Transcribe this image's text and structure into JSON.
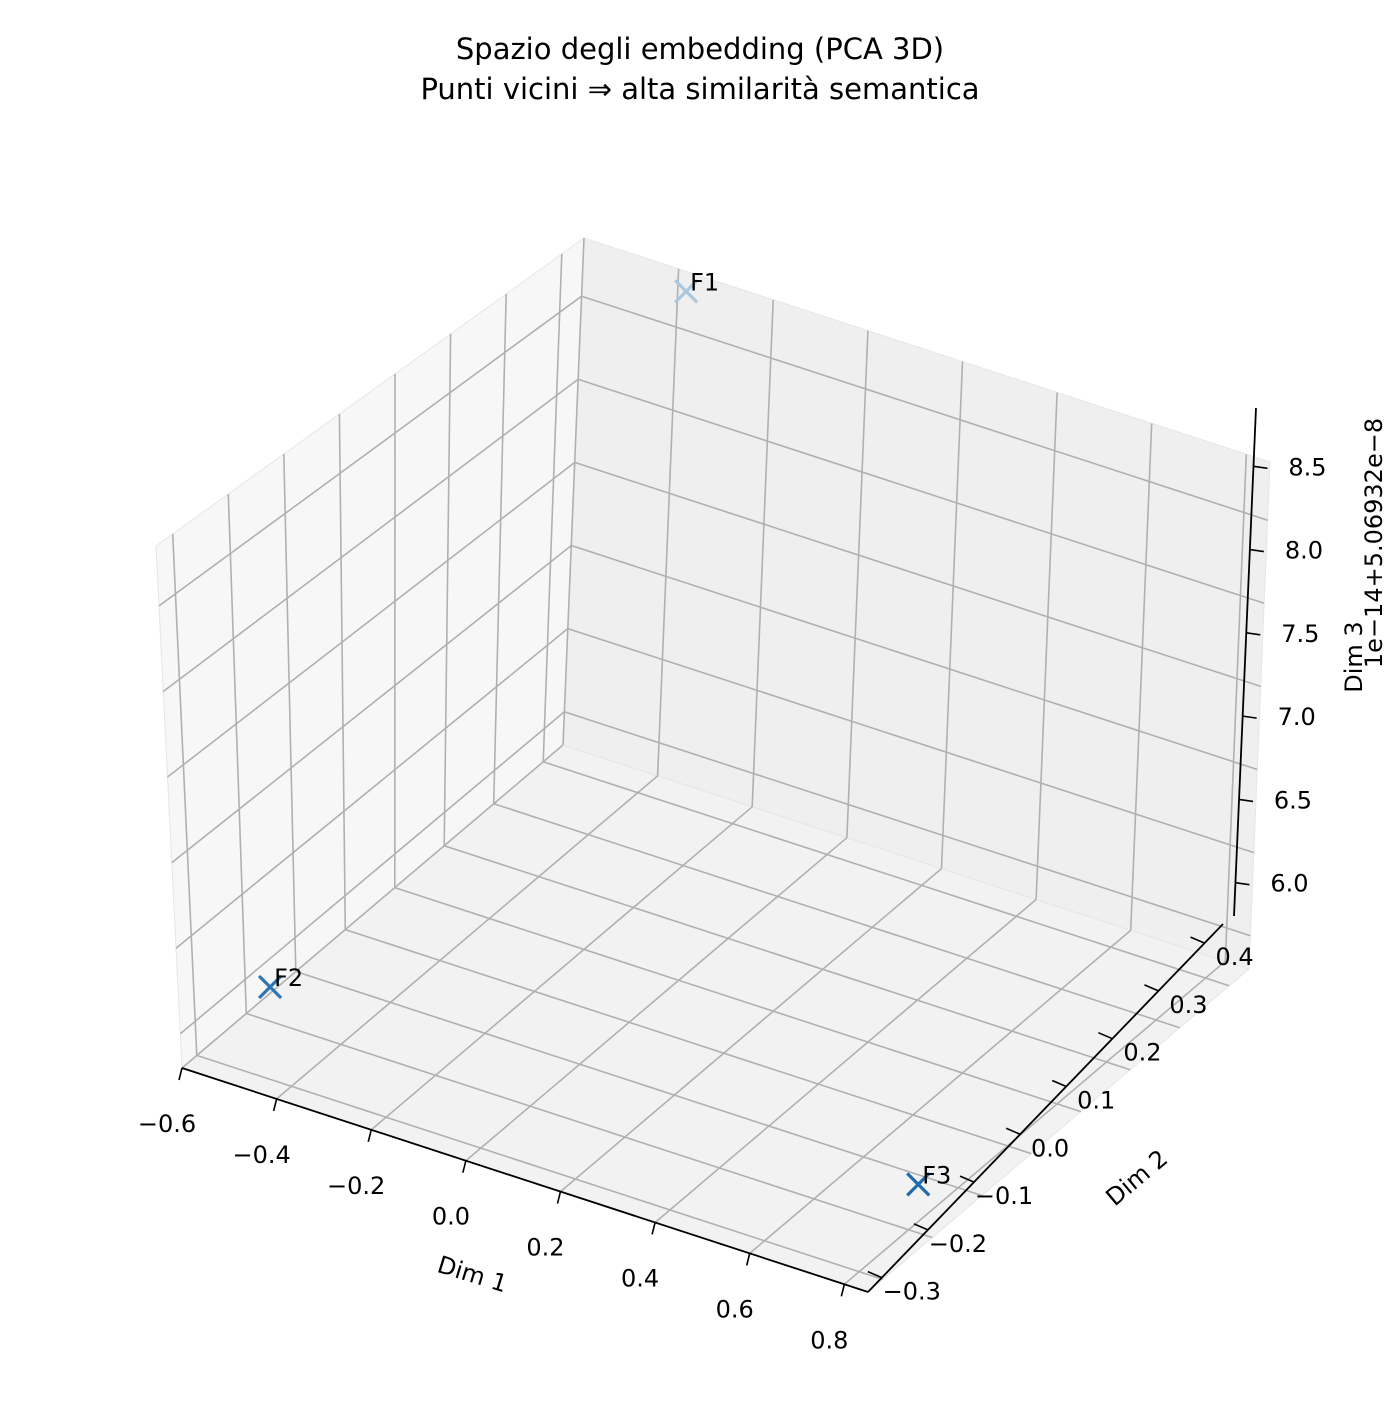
{
  "chart_data": {
    "type": "scatter",
    "title_line1": "Spazio degli embedding (PCA 3D)",
    "title_line2": "Punti vicini ⇒ alta similarità semantica",
    "xlabel": "Dim 1",
    "ylabel": "Dim 2",
    "zlabel": "Dim 3",
    "z_offset_text": "1e−14+5.06932e−8",
    "x_ticks": [
      "−0.6",
      "−0.4",
      "−0.2",
      "0.0",
      "0.2",
      "0.4",
      "0.6",
      "0.8"
    ],
    "y_ticks": [
      "−0.3",
      "−0.2",
      "−0.1",
      "0.0",
      "0.1",
      "0.2",
      "0.3",
      "0.4"
    ],
    "z_ticks": [
      "6.0",
      "6.5",
      "7.0",
      "7.5",
      "8.0",
      "8.5"
    ],
    "xlim": [
      -0.6,
      0.85
    ],
    "ylim": [
      -0.33,
      0.44
    ],
    "zlim": [
      5.8,
      8.85
    ],
    "grid": true,
    "marker": "x",
    "points": [
      {
        "label": "F1",
        "x": -0.36,
        "y": 0.42,
        "z": 8.8,
        "color": "#a9c8e0"
      },
      {
        "label": "F2",
        "x": -0.58,
        "y": -0.17,
        "z": 5.9,
        "color": "#2e75b6"
      },
      {
        "label": "F3",
        "x": 0.78,
        "y": -0.16,
        "z": 5.95,
        "color": "#1f6aad"
      }
    ]
  }
}
